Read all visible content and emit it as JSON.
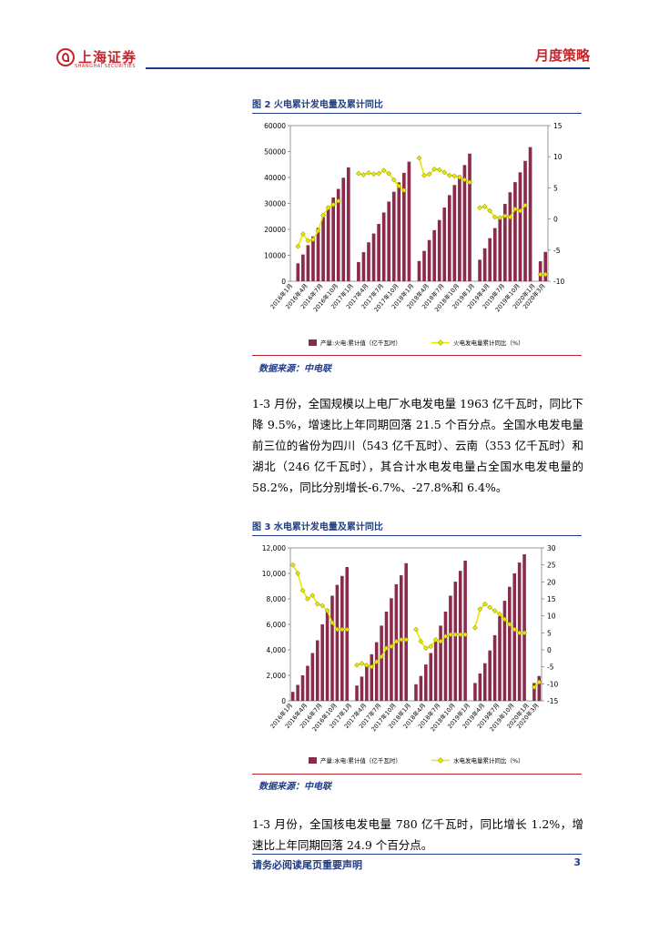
{
  "header": {
    "logo_text": "上海证券",
    "logo_subtext": "SHANGHAI SECURITIES",
    "doc_type": "月度策略"
  },
  "figure2": {
    "title": "图 2 火电累计发电量及累计同比",
    "source": "数据来源：中电联"
  },
  "figure3": {
    "title": "图 3 水电累计发电量及累计同比",
    "source": "数据来源：中电联"
  },
  "paragraph1": "1-3 月份，全国规模以上电厂水电发电量 1963 亿千瓦时，同比下降 9.5%，增速比上年同期回落 21.5 个百分点。全国水电发电量前三位的省份为四川（543 亿千瓦时）、云南（353 亿千瓦时）和湖北（246 亿千瓦时），其合计水电发电量占全国水电发电量的 58.2%，同比分别增长-6.7%、-27.8%和 6.4%。",
  "paragraph2": "1-3 月份，全国核电发电量 780 亿千瓦时，同比增长 1.2%，增速比上年同期回落 24.9 个百分点。",
  "footer": {
    "note": "请务必阅读尾页重要声明",
    "page": "3"
  },
  "colors": {
    "bar": "#8b2a4a",
    "line": "#e8e800",
    "marker_border": "#7a7a00",
    "brand_red": "#c0272d",
    "brand_blue": "#1f3c88"
  },
  "chart_data": [
    {
      "type": "bar",
      "title": "图 2 火电累计发电量及累计同比",
      "categories": [
        "2016年1月",
        "2016年2月",
        "2016年3月",
        "2016年4月",
        "2016年5月",
        "2016年6月",
        "2016年7月",
        "2016年8月",
        "2016年9月",
        "2016年10月",
        "2016年11月",
        "2016年12月",
        "2017年1月",
        "2017年2月",
        "2017年3月",
        "2017年4月",
        "2017年5月",
        "2017年6月",
        "2017年7月",
        "2017年8月",
        "2017年9月",
        "2017年10月",
        "2017年11月",
        "2017年12月",
        "2018年1月",
        "2018年2月",
        "2018年3月",
        "2018年4月",
        "2018年5月",
        "2018年6月",
        "2018年7月",
        "2018年8月",
        "2018年9月",
        "2018年10月",
        "2018年11月",
        "2018年12月",
        "2019年1月",
        "2019年2月",
        "2019年3月",
        "2019年4月",
        "2019年5月",
        "2019年6月",
        "2019年7月",
        "2019年8月",
        "2019年9月",
        "2019年10月",
        "2019年11月",
        "2019年12月",
        "2020年1月",
        "2020年2月",
        "2020年3月"
      ],
      "tick_labels": [
        "2016年1月",
        "2016年4月",
        "2016年7月",
        "2016年10月",
        "2017年1月",
        "2017年4月",
        "2017年7月",
        "2017年10月",
        "2018年1月",
        "2018年4月",
        "2018年7月",
        "2018年10月",
        "2019年1月",
        "2019年4月",
        "2019年7月",
        "2019年10月",
        "2020年1月",
        "2020年3月"
      ],
      "series": [
        {
          "name": "产量:火电:累计值（亿千瓦时）",
          "axis": "left",
          "values": [
            null,
            6900,
            10300,
            13900,
            17300,
            20600,
            24700,
            28900,
            32300,
            35600,
            39900,
            43900,
            null,
            7400,
            11200,
            15000,
            18400,
            22100,
            26500,
            30700,
            34500,
            38100,
            41800,
            46100,
            null,
            7800,
            11700,
            15900,
            19700,
            23600,
            28400,
            33200,
            37100,
            40800,
            44800,
            49200,
            null,
            8300,
            12700,
            16600,
            20500,
            24700,
            29800,
            34300,
            38200,
            42000,
            46400,
            51700,
            null,
            7700,
            11300
          ]
        },
        {
          "name": "火电发电量累计同比（%）",
          "axis": "right",
          "values": [
            null,
            -4.4,
            -2.4,
            -3.5,
            -3.3,
            -1.9,
            0.6,
            1.8,
            2.3,
            2.9,
            null,
            null,
            null,
            7.3,
            7.1,
            7.4,
            7.2,
            7.3,
            7.8,
            7.3,
            6.3,
            5.3,
            4.6,
            null,
            null,
            9.8,
            7.0,
            7.2,
            8.0,
            7.9,
            7.5,
            7.0,
            6.9,
            6.7,
            6.3,
            5.9,
            null,
            1.8,
            2.0,
            1.3,
            0.3,
            0.2,
            0.5,
            0.3,
            1.6,
            1.3,
            2.2,
            null,
            null,
            -8.9,
            -8.9
          ]
        }
      ],
      "ylim": [
        0,
        60000
      ],
      "y2lim": [
        -10,
        15
      ]
    },
    {
      "type": "bar",
      "title": "图 3 水电累计发电量及累计同比",
      "categories": [
        "2016年1月",
        "2016年2月",
        "2016年3月",
        "2016年4月",
        "2016年5月",
        "2016年6月",
        "2016年7月",
        "2016年8月",
        "2016年9月",
        "2016年10月",
        "2016年11月",
        "2016年12月",
        "2017年1月",
        "2017年2月",
        "2017年3月",
        "2017年4月",
        "2017年5月",
        "2017年6月",
        "2017年7月",
        "2017年8月",
        "2017年9月",
        "2017年10月",
        "2017年11月",
        "2017年12月",
        "2018年1月",
        "2018年2月",
        "2018年3月",
        "2018年4月",
        "2018年5月",
        "2018年6月",
        "2018年7月",
        "2018年8月",
        "2018年9月",
        "2018年10月",
        "2018年11月",
        "2018年12月",
        "2019年1月",
        "2019年2月",
        "2019年3月",
        "2019年4月",
        "2019年5月",
        "2019年6月",
        "2019年7月",
        "2019年8月",
        "2019年9月",
        "2019年10月",
        "2019年11月",
        "2019年12月",
        "2020年1月",
        "2020年2月",
        "2020年3月"
      ],
      "tick_labels": [
        "2016年1月",
        "2016年4月",
        "2016年7月",
        "2016年10月",
        "2017年1月",
        "2017年4月",
        "2017年7月",
        "2017年10月",
        "2018年1月",
        "2018年4月",
        "2018年7月",
        "2018年10月",
        "2019年1月",
        "2019年4月",
        "2019年7月",
        "2019年10月",
        "2020年1月",
        "2020年3月"
      ],
      "series": [
        {
          "name": "产量:水电:累计值（亿千瓦时）",
          "axis": "left",
          "values": [
            700,
            1250,
            2000,
            2750,
            3750,
            4750,
            6000,
            7200,
            8250,
            9100,
            9800,
            10500,
            null,
            1200,
            1900,
            2750,
            3650,
            4600,
            5900,
            7000,
            8050,
            9150,
            9850,
            10800,
            null,
            1300,
            1950,
            2850,
            3750,
            4650,
            5900,
            7000,
            8250,
            9350,
            10200,
            11000,
            null,
            1400,
            2150,
            2950,
            3950,
            5150,
            6650,
            7850,
            8950,
            10000,
            10850,
            11500,
            null,
            1400,
            1950
          ]
        },
        {
          "name": "水电发电量累计同比（%）",
          "axis": "right",
          "values": [
            25.0,
            22.5,
            17.5,
            15.0,
            16.0,
            13.5,
            13.0,
            11.5,
            8.0,
            6.0,
            6.0,
            6.0,
            null,
            -4.5,
            -4.0,
            -4.5,
            -5.0,
            -3.5,
            -2.0,
            0.5,
            1.0,
            2.5,
            3.0,
            3.0,
            null,
            6.0,
            2.5,
            0.5,
            1.0,
            3.0,
            2.5,
            4.0,
            4.5,
            4.5,
            4.5,
            4.5,
            null,
            6.5,
            12.0,
            13.5,
            12.5,
            11.5,
            10.5,
            9.0,
            7.5,
            6.0,
            5.0,
            5.0,
            null,
            -11.0,
            -9.5
          ]
        }
      ],
      "ylim": [
        0,
        12000
      ],
      "y2lim": [
        -15,
        30
      ]
    }
  ]
}
